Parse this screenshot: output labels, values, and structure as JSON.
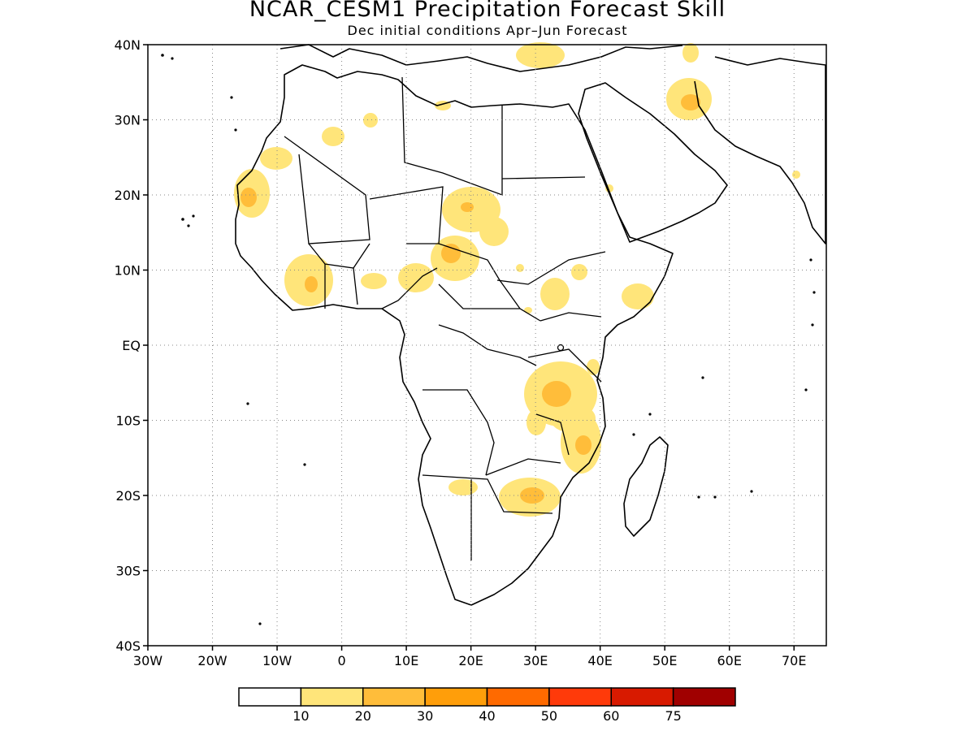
{
  "title": "NCAR_CESM1 Precipitation Forecast Skill",
  "subtitle": "Dec initial conditions  Apr–Jun Forecast",
  "map": {
    "lon_range": [
      -30,
      75
    ],
    "lat_range": [
      -40,
      40
    ],
    "lat_ticks": [
      {
        "lat": 40,
        "label": "40N"
      },
      {
        "lat": 30,
        "label": "30N"
      },
      {
        "lat": 20,
        "label": "20N"
      },
      {
        "lat": 10,
        "label": "10N"
      },
      {
        "lat": 0,
        "label": "EQ"
      },
      {
        "lat": -10,
        "label": "10S"
      },
      {
        "lat": -20,
        "label": "20S"
      },
      {
        "lat": -30,
        "label": "30S"
      },
      {
        "lat": -40,
        "label": "40S"
      }
    ],
    "lon_ticks": [
      {
        "lon": -30,
        "label": "30W"
      },
      {
        "lon": -20,
        "label": "20W"
      },
      {
        "lon": -10,
        "label": "10W"
      },
      {
        "lon": 0,
        "label": "0"
      },
      {
        "lon": 10,
        "label": "10E"
      },
      {
        "lon": 20,
        "label": "20E"
      },
      {
        "lon": 30,
        "label": "30E"
      },
      {
        "lon": 40,
        "label": "40E"
      },
      {
        "lon": 50,
        "label": "50E"
      },
      {
        "lon": 60,
        "label": "60E"
      },
      {
        "lon": 70,
        "label": "70E"
      }
    ],
    "gridlines": "dotted"
  },
  "legend": {
    "colors": [
      "#ffffff",
      "#ffe57a",
      "#ffbd3a",
      "#ff9e0a",
      "#ff6a00",
      "#ff3a0a",
      "#d81a00",
      "#a00000"
    ],
    "labels": [
      "10",
      "20",
      "30",
      "40",
      "50",
      "60",
      "75"
    ]
  }
}
